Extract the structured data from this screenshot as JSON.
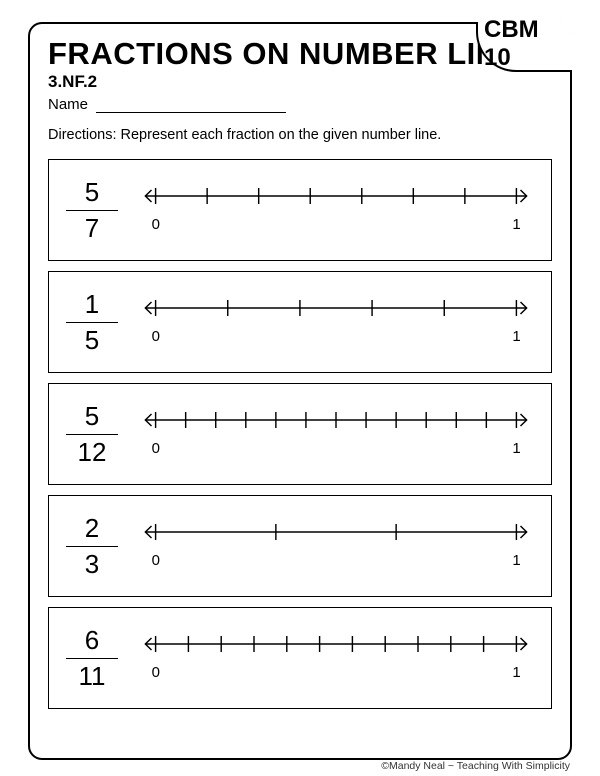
{
  "title": "FRACTIONS ON NUMBER LINES",
  "badge": "CBM 10",
  "standard": "3.NF.2",
  "name_label": "Name",
  "directions": "Directions:  Represent each fraction on the given number line.",
  "axis": {
    "start_label": "0",
    "end_label": "1"
  },
  "line_style": {
    "stroke": "#000000",
    "stroke_width": 1.4,
    "tick_height": 16,
    "arrow_size": 6
  },
  "problems": [
    {
      "numerator": "5",
      "denominator": "7",
      "divisions": 7
    },
    {
      "numerator": "1",
      "denominator": "5",
      "divisions": 5
    },
    {
      "numerator": "5",
      "denominator": "12",
      "divisions": 12
    },
    {
      "numerator": "2",
      "denominator": "3",
      "divisions": 3
    },
    {
      "numerator": "6",
      "denominator": "11",
      "divisions": 11
    }
  ],
  "footer": "©Mandy Neal ~ Teaching With Simplicity"
}
